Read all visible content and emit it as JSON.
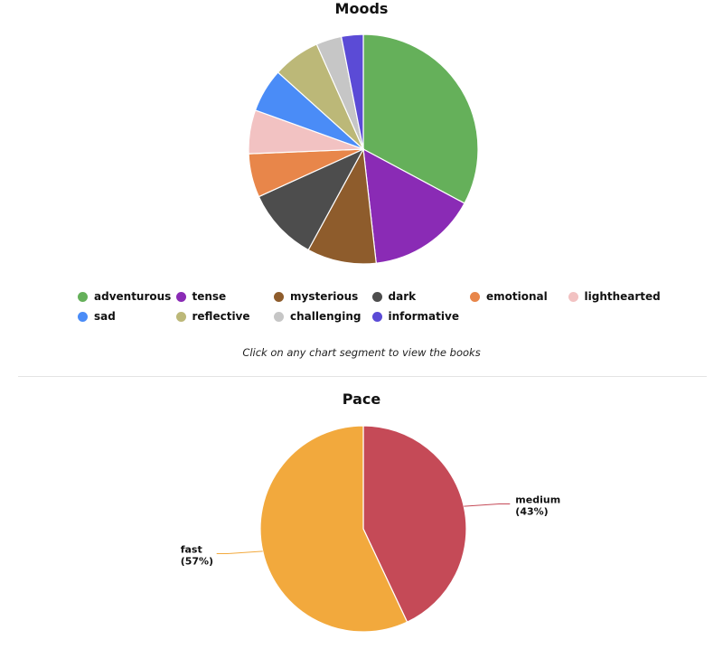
{
  "chart_data": [
    {
      "type": "pie",
      "title": "Moods",
      "categories": [
        "adventurous",
        "tense",
        "mysterious",
        "dark",
        "emotional",
        "lighthearted",
        "sad",
        "reflective",
        "challenging",
        "informative"
      ],
      "values": [
        32,
        15,
        9.5,
        10,
        6,
        6,
        6,
        6.5,
        3.5,
        3
      ],
      "colors": [
        "#65b05a",
        "#8a2bb5",
        "#8e5c2c",
        "#4d4d4d",
        "#e8864a",
        "#f2c2c2",
        "#4a8cf7",
        "#bcb878",
        "#c6c6c6",
        "#5b4bd6"
      ],
      "legend": "bottom"
    },
    {
      "type": "pie",
      "title": "Pace",
      "categories": [
        "medium",
        "fast"
      ],
      "values": [
        43,
        57
      ],
      "percent_labels": [
        "(43%)",
        "(57%)"
      ],
      "colors": [
        "#c54a57",
        "#f2a93d"
      ]
    }
  ],
  "hint": "Click on any chart segment to view the books"
}
